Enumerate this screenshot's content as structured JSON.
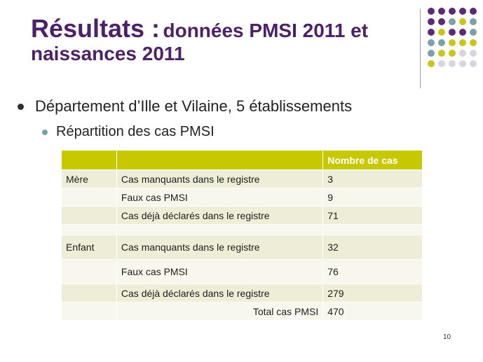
{
  "title": {
    "main": "Résultats :",
    "sub_line1": "données PMSI 2011 et",
    "sub_line2": "naissances 2011",
    "color": "#4b2168"
  },
  "bullets": {
    "level1": "Département d’Ille et Vilaine, 5 établissements",
    "level2": "Répartition des cas PMSI"
  },
  "decoration": {
    "dot_colors": [
      "#5b2a78",
      "#7da1a8",
      "#c6c61c",
      "#d8d4e2"
    ]
  },
  "table": {
    "header": [
      "",
      "",
      "Nombre de cas"
    ],
    "rows": [
      [
        "Mère",
        "Cas manquants dans le registre",
        "3"
      ],
      [
        "",
        "Faux cas PMSI",
        "9"
      ],
      [
        "",
        "Cas déjà déclarés dans le registre",
        "71"
      ],
      [
        "",
        "",
        ""
      ],
      [
        "Enfant",
        "Cas manquants dans le registre",
        "32"
      ],
      [
        "",
        "Faux cas PMSI",
        "76"
      ],
      [
        "",
        "Cas déjà déclarés dans le registre",
        "279"
      ],
      [
        "",
        "Total cas PMSI",
        "470"
      ]
    ],
    "header_color": "#c8c800"
  },
  "page_number": "10"
}
